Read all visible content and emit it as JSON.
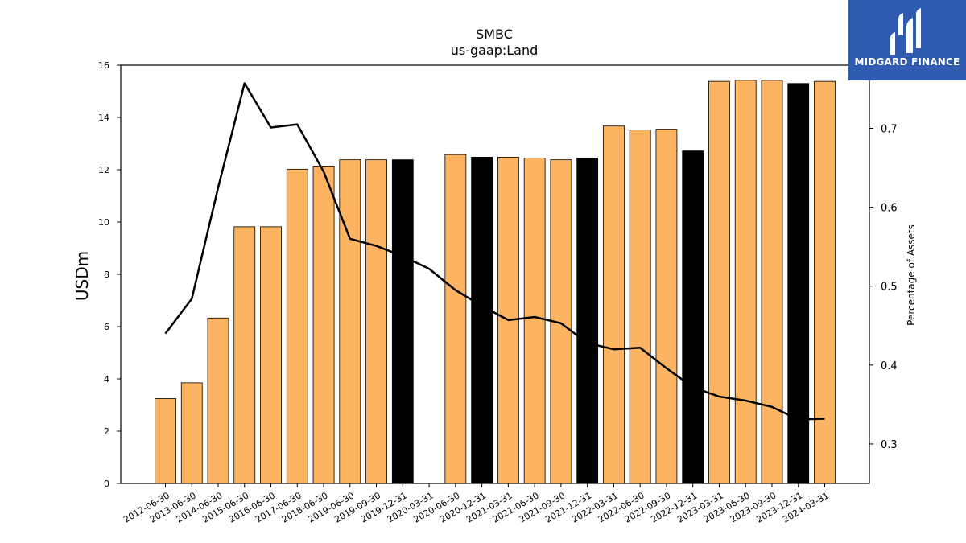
{
  "chart_data": {
    "type": "bar",
    "title": "SMBC",
    "subtitle": "us-gaap:Land",
    "ylabel": "USDm",
    "y2label": "Percentage of Assets",
    "ylim": [
      0,
      16
    ],
    "y2lim": [
      0.25,
      0.78
    ],
    "yticks": [
      "0",
      "2",
      "4",
      "6",
      "8",
      "10",
      "12",
      "14",
      "16"
    ],
    "y2ticks": [
      "0.3",
      "0.4",
      "0.5",
      "0.6",
      "0.7"
    ],
    "categories": [
      "2012-06-30",
      "2013-06-30",
      "2014-06-30",
      "2015-06-30",
      "2016-06-30",
      "2017-06-30",
      "2018-06-30",
      "2019-06-30",
      "2019-09-30",
      "2019-12-31",
      "2020-03-31",
      "2020-06-30",
      "2020-12-31",
      "2021-03-31",
      "2021-06-30",
      "2021-09-30",
      "2021-12-31",
      "2022-03-31",
      "2022-06-30",
      "2022-09-30",
      "2022-12-31",
      "2023-03-31",
      "2023-06-30",
      "2023-09-30",
      "2023-12-31",
      "2024-03-31"
    ],
    "series": [
      {
        "type": "bar",
        "values": [
          3.25,
          3.85,
          6.33,
          9.82,
          9.82,
          12.02,
          12.14,
          12.38,
          12.38,
          12.38,
          0,
          12.58,
          12.48,
          12.48,
          12.45,
          12.38,
          12.45,
          13.67,
          13.52,
          13.55,
          12.72,
          15.38,
          15.42,
          15.42,
          15.3,
          15.38
        ],
        "highlight": [
          false,
          false,
          false,
          false,
          false,
          false,
          false,
          false,
          false,
          true,
          false,
          false,
          true,
          false,
          false,
          false,
          true,
          false,
          false,
          false,
          true,
          false,
          false,
          false,
          true,
          false
        ]
      },
      {
        "type": "line",
        "axis": "right",
        "values": [
          0.44,
          0.484,
          0.625,
          0.757,
          0.701,
          0.705,
          0.645,
          0.56,
          0.551,
          0.538,
          0.522,
          0.495,
          0.475,
          0.457,
          0.461,
          0.453,
          0.428,
          0.42,
          0.422,
          0.396,
          0.372,
          0.36,
          0.355,
          0.347,
          0.331,
          0.332
        ]
      }
    ],
    "colors": {
      "bar": "#fdb462",
      "bar_highlight": "#000000",
      "line": "#000000"
    }
  },
  "logo": {
    "text": "MIDGARD FINANCE",
    "bg": "#2f5bb0"
  }
}
